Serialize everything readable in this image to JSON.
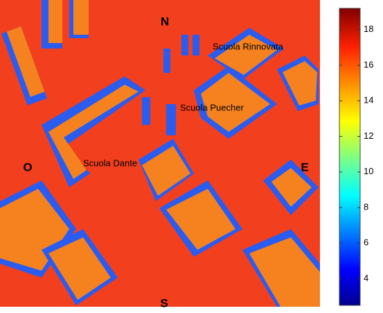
{
  "map": {
    "compass": {
      "north": "N",
      "south": "S",
      "east": "E",
      "west": "O"
    },
    "labels": [
      "Scuola Rinnovata",
      "Scuola Puecher",
      "Scuola Dante"
    ],
    "colorbar": {
      "lim": [
        2.5,
        19.2
      ],
      "ticks": [
        4,
        6,
        8,
        10,
        12,
        14,
        16,
        18
      ]
    }
  }
}
